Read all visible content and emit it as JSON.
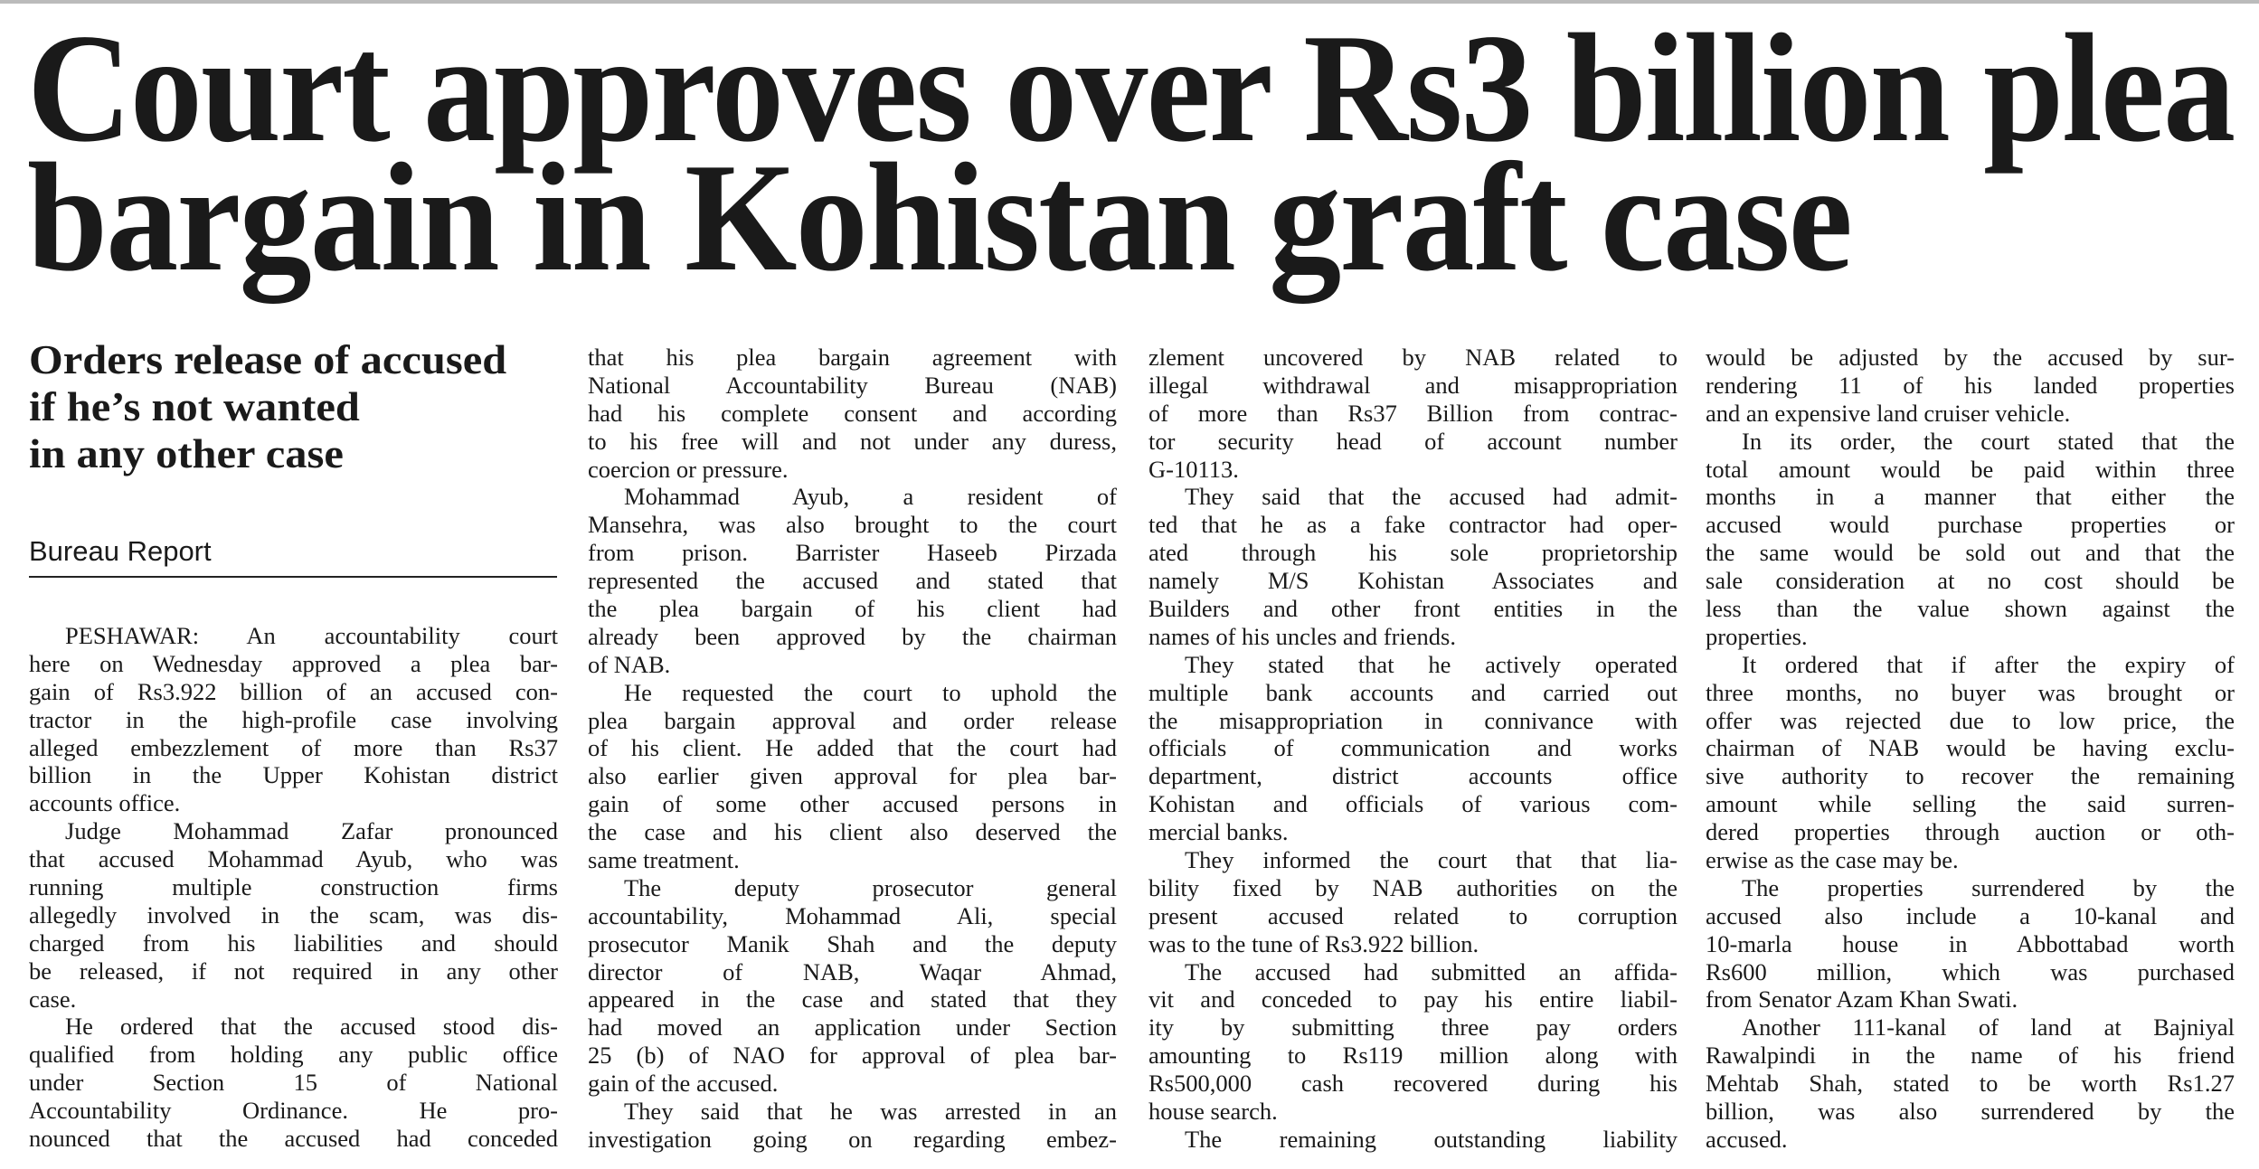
{
  "headline": {
    "line1": "Court approves over Rs3 billion plea",
    "line2": "bargain in Kohistan graft case"
  },
  "subhead": {
    "line1": "Orders release of accused",
    "line2": "if he’s not wanted",
    "line3": "in any other case"
  },
  "byline": "Bureau Report",
  "columns": [
    {
      "paragraphs": [
        {
          "cont": false,
          "continues": false,
          "lines": [
            "PESHAWAR: An accountability court",
            "here on Wednesday approved a plea bar-",
            "gain of Rs3.922 billion of an accused con-",
            "tractor in the high-profile case involving",
            "alleged embezzlement of more than Rs37",
            "billion in the Upper Kohistan district",
            "accounts office."
          ]
        },
        {
          "cont": false,
          "continues": false,
          "lines": [
            "Judge Mohammad Zafar pronounced",
            "that accused Mohammad Ayub, who was",
            "running multiple construction firms",
            "allegedly involved in the scam, was dis-",
            "charged from his liabilities and should",
            "be released, if not required in any other",
            "case."
          ]
        },
        {
          "cont": false,
          "continues": true,
          "lines": [
            "He ordered that the accused stood dis-",
            "qualified from holding any public office",
            "under Section 15 of National",
            "Accountability Ordinance. He pro-",
            "nounced that the accused had conceded"
          ]
        }
      ]
    },
    {
      "paragraphs": [
        {
          "cont": true,
          "continues": false,
          "lines": [
            "that his plea bargain agreement with",
            "National Accountability Bureau (NAB)",
            "had his complete consent and according",
            "to his free will and not under any duress,",
            "coercion or pressure."
          ]
        },
        {
          "cont": false,
          "continues": false,
          "lines": [
            "Mohammad Ayub, a resident of",
            "Mansehra, was also brought to the court",
            "from prison. Barrister Haseeb Pirzada",
            "represented the accused and stated that",
            "the plea bargain of his client had",
            "already been approved by the chairman",
            "of NAB."
          ]
        },
        {
          "cont": false,
          "continues": false,
          "lines": [
            "He requested the court to uphold the",
            "plea bargain approval and order release",
            "of his client. He added that the court had",
            "also earlier given approval for plea bar-",
            "gain of some other accused persons in",
            "the case and his client also deserved the",
            "same treatment."
          ]
        },
        {
          "cont": false,
          "continues": false,
          "lines": [
            "The deputy prosecutor general",
            "accountability, Mohammad Ali, special",
            "prosecutor Manik Shah and the deputy",
            "director of NAB, Waqar Ahmad,",
            "appeared in the case and stated that they",
            "had moved an application under Section",
            "25 (b) of NAO for approval of plea bar-",
            "gain of the accused."
          ]
        },
        {
          "cont": false,
          "continues": true,
          "lines": [
            "They said that he was arrested in an",
            "investigation going on regarding embez-"
          ]
        }
      ]
    },
    {
      "paragraphs": [
        {
          "cont": true,
          "continues": false,
          "lines": [
            "zlement uncovered by NAB related to",
            "illegal withdrawal and misappropriation",
            "of more than Rs37 Billion from contrac-",
            "tor security head of account number",
            "G-10113."
          ]
        },
        {
          "cont": false,
          "continues": false,
          "lines": [
            "They said that the accused had admit-",
            "ted that he as a fake contractor had oper-",
            "ated through his sole proprietorship",
            "namely M/S Kohistan Associates and",
            "Builders and other front entities in the",
            "names of his uncles and friends."
          ]
        },
        {
          "cont": false,
          "continues": false,
          "lines": [
            "They stated that he actively operated",
            "multiple bank accounts and carried out",
            "the misappropriation in connivance with",
            "officials of communication and works",
            "department, district accounts office",
            "Kohistan and officials of various com-",
            "mercial banks."
          ]
        },
        {
          "cont": false,
          "continues": false,
          "lines": [
            "They informed the court that that lia-",
            "bility fixed by NAB authorities on the",
            "present accused related to corruption",
            "was to the tune of Rs3.922 billion."
          ]
        },
        {
          "cont": false,
          "continues": false,
          "lines": [
            "The accused had submitted an affida-",
            "vit and conceded to pay his entire liabil-",
            "ity by submitting three pay orders",
            "amounting to Rs119 million along with",
            "Rs500,000 cash recovered during his",
            "house search."
          ]
        },
        {
          "cont": false,
          "continues": true,
          "lines": [
            "The remaining outstanding liability"
          ]
        }
      ]
    },
    {
      "paragraphs": [
        {
          "cont": true,
          "continues": false,
          "lines": [
            "would be adjusted by the accused by sur-",
            "rendering 11 of his landed properties",
            "and an expensive land cruiser vehicle."
          ]
        },
        {
          "cont": false,
          "continues": false,
          "lines": [
            "In its order, the court stated that the",
            "total amount would be paid within three",
            "months in a manner that either the",
            "accused would purchase properties or",
            "the same would be sold out and that the",
            "sale consideration at no cost should be",
            "less than the value shown against the",
            "properties."
          ]
        },
        {
          "cont": false,
          "continues": false,
          "lines": [
            "It ordered that if after the expiry of",
            "three months, no buyer was brought or",
            "offer was rejected due to low price, the",
            "chairman of NAB would be having exclu-",
            "sive authority to recover the remaining",
            "amount while selling the said surren-",
            "dered properties through auction or oth-",
            "erwise as the case may be."
          ]
        },
        {
          "cont": false,
          "continues": false,
          "lines": [
            "The properties surrendered by the",
            "accused also include a 10-kanal and",
            "10-marla house in Abbottabad worth",
            "Rs600 million, which was purchased",
            "from Senator Azam Khan Swati."
          ]
        },
        {
          "cont": false,
          "continues": false,
          "lines": [
            "Another 111-kanal of land at Bajniyal",
            "Rawalpindi in the name of his friend",
            "Mehtab Shah, stated to be worth Rs1.27",
            "billion, was also surrendered by the",
            "accused."
          ]
        }
      ]
    }
  ]
}
